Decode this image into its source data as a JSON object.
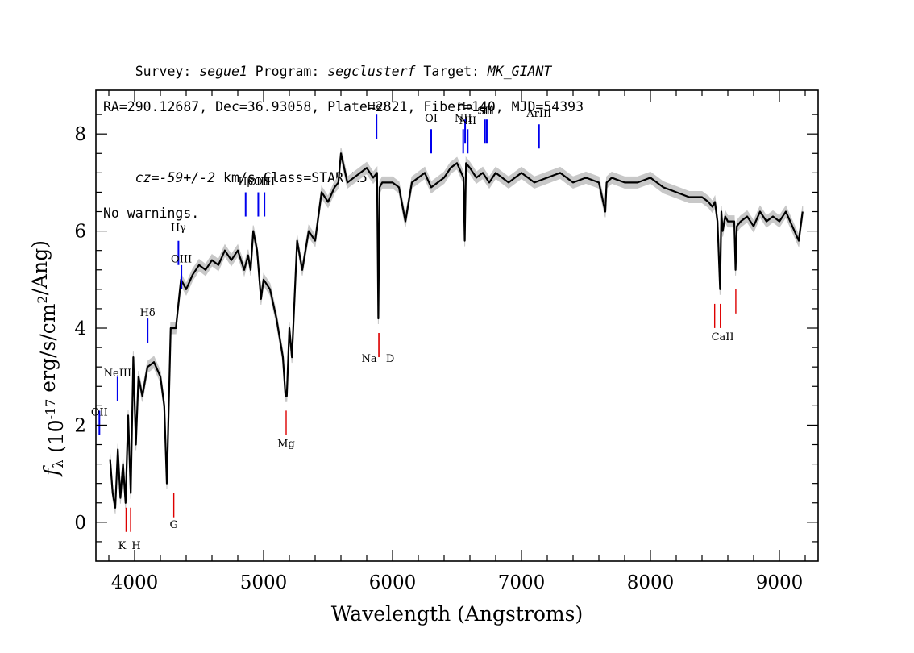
{
  "header": {
    "line1": [
      {
        "text": "Survey: ",
        "italic": false
      },
      {
        "text": "segue1",
        "italic": true
      },
      {
        "text": " Program: ",
        "italic": false
      },
      {
        "text": "segclusterf",
        "italic": true
      },
      {
        "text": " Target: ",
        "italic": false
      },
      {
        "text": "MK_GIANT",
        "italic": true
      }
    ],
    "line2": "RA=290.12687, Dec=36.93058, Plate=2821, Fiber=140, MJD=54393",
    "line3": [
      {
        "text": "cz=-59+/-2",
        "italic": true
      },
      {
        "text": " km/s Class=STAR K5",
        "italic": false
      }
    ],
    "line4": "No warnings."
  },
  "chart_data": {
    "type": "line",
    "xlabel": "Wavelength (Angstroms)",
    "ylabel": "f_λ (10^-17 erg/s/cm^2/Ang)",
    "xlim": [
      3700,
      9300
    ],
    "ylim": [
      -0.8,
      8.9
    ],
    "x_ticks": [
      4000,
      5000,
      6000,
      7000,
      8000,
      9000
    ],
    "x_tick_labels": [
      "4000",
      "5000",
      "6000",
      "7000",
      "8000",
      "9000"
    ],
    "y_ticks": [
      0,
      2,
      4,
      6,
      8
    ],
    "y_tick_labels": [
      "0",
      "2",
      "4",
      "6",
      "8"
    ],
    "grid": false,
    "series": [
      {
        "role": "flux",
        "color": "#000000",
        "x": [
          3810,
          3830,
          3850,
          3870,
          3890,
          3910,
          3930,
          3950,
          3970,
          3990,
          4010,
          4030,
          4060,
          4100,
          4150,
          4200,
          4230,
          4250,
          4280,
          4320,
          4360,
          4400,
          4450,
          4500,
          4550,
          4600,
          4650,
          4700,
          4750,
          4800,
          4850,
          4880,
          4900,
          4920,
          4950,
          4980,
          5000,
          5050,
          5100,
          5150,
          5170,
          5180,
          5200,
          5220,
          5260,
          5300,
          5350,
          5400,
          5450,
          5500,
          5550,
          5580,
          5600,
          5650,
          5700,
          5750,
          5800,
          5850,
          5880,
          5890,
          5900,
          5920,
          5950,
          6000,
          6050,
          6100,
          6150,
          6200,
          6250,
          6300,
          6350,
          6400,
          6450,
          6500,
          6550,
          6560,
          6570,
          6600,
          6650,
          6700,
          6750,
          6800,
          6850,
          6900,
          6950,
          7000,
          7100,
          7200,
          7300,
          7400,
          7500,
          7600,
          7650,
          7660,
          7700,
          7800,
          7900,
          8000,
          8100,
          8200,
          8300,
          8400,
          8450,
          8480,
          8500,
          8520,
          8540,
          8550,
          8560,
          8580,
          8600,
          8650,
          8660,
          8670,
          8700,
          8750,
          8800,
          8850,
          8900,
          8950,
          9000,
          9050,
          9100,
          9150,
          9180
        ],
        "y": [
          1.3,
          0.6,
          0.3,
          1.5,
          0.5,
          1.2,
          0.4,
          2.2,
          0.6,
          3.4,
          1.6,
          3.0,
          2.6,
          3.2,
          3.3,
          3.0,
          2.4,
          0.8,
          4.0,
          4.0,
          5.0,
          4.8,
          5.1,
          5.3,
          5.2,
          5.4,
          5.3,
          5.6,
          5.4,
          5.6,
          5.2,
          5.5,
          5.2,
          6.0,
          5.6,
          4.6,
          5.0,
          4.8,
          4.2,
          3.4,
          2.6,
          2.6,
          4.0,
          3.4,
          5.8,
          5.2,
          6.0,
          5.8,
          6.8,
          6.6,
          6.9,
          7.0,
          7.6,
          7.0,
          7.1,
          7.2,
          7.3,
          7.1,
          7.2,
          4.2,
          6.9,
          7.0,
          7.0,
          7.0,
          6.9,
          6.2,
          7.0,
          7.1,
          7.2,
          6.9,
          7.0,
          7.1,
          7.3,
          7.4,
          7.1,
          5.8,
          7.4,
          7.3,
          7.1,
          7.2,
          7.0,
          7.2,
          7.1,
          7.0,
          7.1,
          7.2,
          7.0,
          7.1,
          7.2,
          7.0,
          7.1,
          7.0,
          6.4,
          7.0,
          7.1,
          7.0,
          7.0,
          7.1,
          6.9,
          6.8,
          6.7,
          6.7,
          6.6,
          6.5,
          6.6,
          6.2,
          4.8,
          6.4,
          6.0,
          6.3,
          6.2,
          6.2,
          5.2,
          6.1,
          6.2,
          6.3,
          6.1,
          6.4,
          6.2,
          6.3,
          6.2,
          6.4,
          6.1,
          5.8,
          6.4
        ]
      }
    ],
    "emission_lines": [
      {
        "label": "OII",
        "wl": 3727,
        "y": 1.8,
        "label_y": 2.2,
        "label_below": false
      },
      {
        "label": "NeIII",
        "wl": 3868,
        "y": 2.5,
        "label_y": 3.0,
        "label_below": false
      },
      {
        "label": "Hδ",
        "wl": 4101,
        "y": 3.7,
        "label_y": 4.25,
        "label_below": false
      },
      {
        "label": "Hγ",
        "wl": 4340,
        "y": 5.3,
        "label_y": 6.0,
        "label_below": false
      },
      {
        "label": "OIII",
        "wl": 4363,
        "y": 4.8,
        "label_y": 5.35,
        "label_below": false
      },
      {
        "label": "Hβ",
        "wl": 4861,
        "y": 6.3,
        "label_y": 6.95,
        "label_below": false
      },
      {
        "label": "OIII",
        "wl": 4959,
        "y": 6.3,
        "label_y": 6.95,
        "label_below": false
      },
      {
        "label": "OIII",
        "wl": 5007,
        "y": 6.3,
        "label_y": 6.95,
        "label_below": false
      },
      {
        "label": "HeI",
        "wl": 5876,
        "y": 7.9,
        "label_y": 8.5,
        "label_below": false
      },
      {
        "label": "OI",
        "wl": 6300,
        "y": 7.6,
        "label_y": 8.25,
        "label_below": false
      },
      {
        "label": "NII",
        "wl": 6548,
        "y": 7.6,
        "label_y": 8.25,
        "label_below": false
      },
      {
        "label": "Hα",
        "wl": 6563,
        "y": 7.8,
        "label_y": 8.5,
        "label_below": false
      },
      {
        "label": "NII",
        "wl": 6583,
        "y": 7.6,
        "label_y": 8.2,
        "label_below": false
      },
      {
        "label": "SII",
        "wl": 6717,
        "y": 7.8,
        "label_y": 8.4,
        "label_below": false
      },
      {
        "label": "SII",
        "wl": 6731,
        "y": 7.8,
        "label_y": 8.4,
        "label_below": false
      },
      {
        "label": "ArIII",
        "wl": 7136,
        "y": 7.7,
        "label_y": 8.35,
        "label_below": false
      }
    ],
    "absorption_lines": [
      {
        "label": "K",
        "wl": 3934,
        "y": 0.3,
        "label_y": -0.55
      },
      {
        "label": "H",
        "wl": 3969,
        "y": 0.3,
        "label_y": -0.55
      },
      {
        "label": "G",
        "wl": 4304,
        "y": 0.6,
        "label_y": -0.12
      },
      {
        "label": "Mg",
        "wl": 5175,
        "y": 2.3,
        "label_y": 1.55
      },
      {
        "label": "Na",
        "wl": 5894,
        "y": 3.9,
        "label_y": 3.3
      },
      {
        "label": "D",
        "wl": 5894,
        "y": 3.9,
        "label_y": 3.3
      },
      {
        "label": "CaII",
        "wl": 8498,
        "y": 4.5,
        "label_y": 3.75
      },
      {
        "label": "CaII",
        "wl": 8542,
        "y": 4.5,
        "label_y": 3.75
      },
      {
        "label": "CaII",
        "wl": 8662,
        "y": 4.8,
        "label_y": 3.75
      }
    ],
    "colors": {
      "flux": "#000000",
      "error": "#c8c8c8",
      "emission": "#0000ee",
      "absorption": "#dd0000"
    }
  }
}
